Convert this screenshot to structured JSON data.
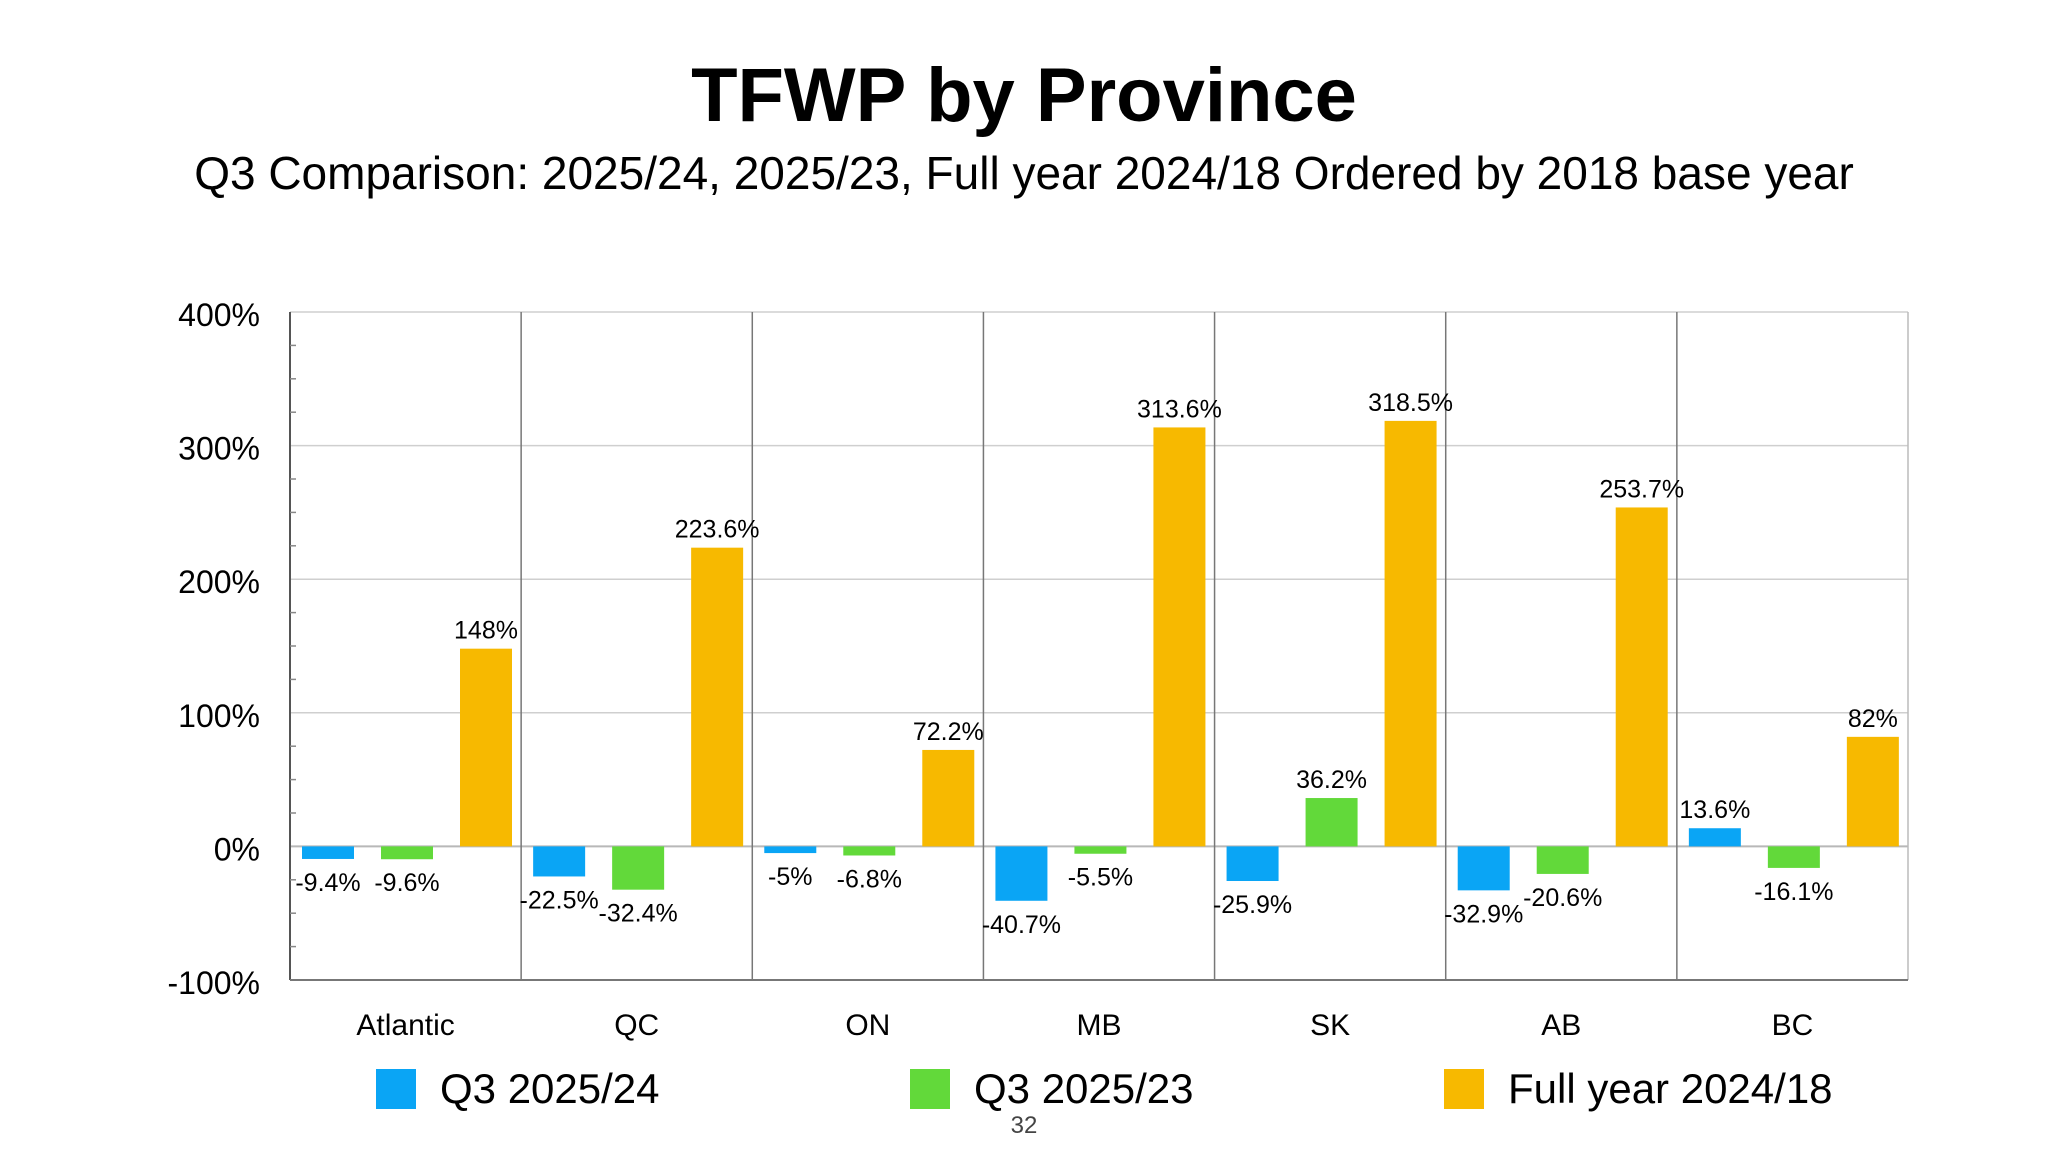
{
  "title": "TFWP by Province",
  "subtitle": "Q3 Comparison: 2025/24, 2025/23, Full year 2024/18 Ordered by 2018 base year",
  "page_number": "32",
  "colors": {
    "q3_2025_24": "#0aa5f5",
    "q3_2025_23": "#62d93a",
    "full_2024_18": "#f7b900"
  },
  "chart_data": {
    "type": "bar",
    "title": "",
    "xlabel": "",
    "ylabel": "",
    "ylim": [
      -100,
      400
    ],
    "y_ticks": [
      -100,
      0,
      100,
      200,
      300,
      400
    ],
    "y_tick_labels": [
      "-100%",
      "0%",
      "100%",
      "200%",
      "300%",
      "400%"
    ],
    "grid": true,
    "legend": "bottom",
    "categories": [
      "Atlantic",
      "QC",
      "ON",
      "MB",
      "SK",
      "AB",
      "BC"
    ],
    "series": [
      {
        "name": "Q3 2025/24",
        "color": "#0aa5f5",
        "values": [
          -9.4,
          -22.5,
          -5,
          -40.7,
          -25.9,
          -32.9,
          13.6
        ],
        "labels": [
          "-9.4%",
          "-22.5%",
          "-5%",
          "-40.7%",
          "-25.9%",
          "-32.9%",
          "13.6%"
        ]
      },
      {
        "name": "Q3 2025/23",
        "color": "#62d93a",
        "values": [
          -9.6,
          -32.4,
          -6.8,
          -5.5,
          36.2,
          -20.6,
          -16.1
        ],
        "labels": [
          "-9.6%",
          "-32.4%",
          "-6.8%",
          "-5.5%",
          "36.2%",
          "-20.6%",
          "-16.1%"
        ]
      },
      {
        "name": "Full year 2024/18",
        "color": "#f7b900",
        "values": [
          148,
          223.6,
          72.2,
          313.6,
          318.5,
          253.7,
          82
        ],
        "labels": [
          "148%",
          "223.6%",
          "72.2%",
          "313.6%",
          "318.5%",
          "253.7%",
          "82%"
        ]
      }
    ]
  }
}
